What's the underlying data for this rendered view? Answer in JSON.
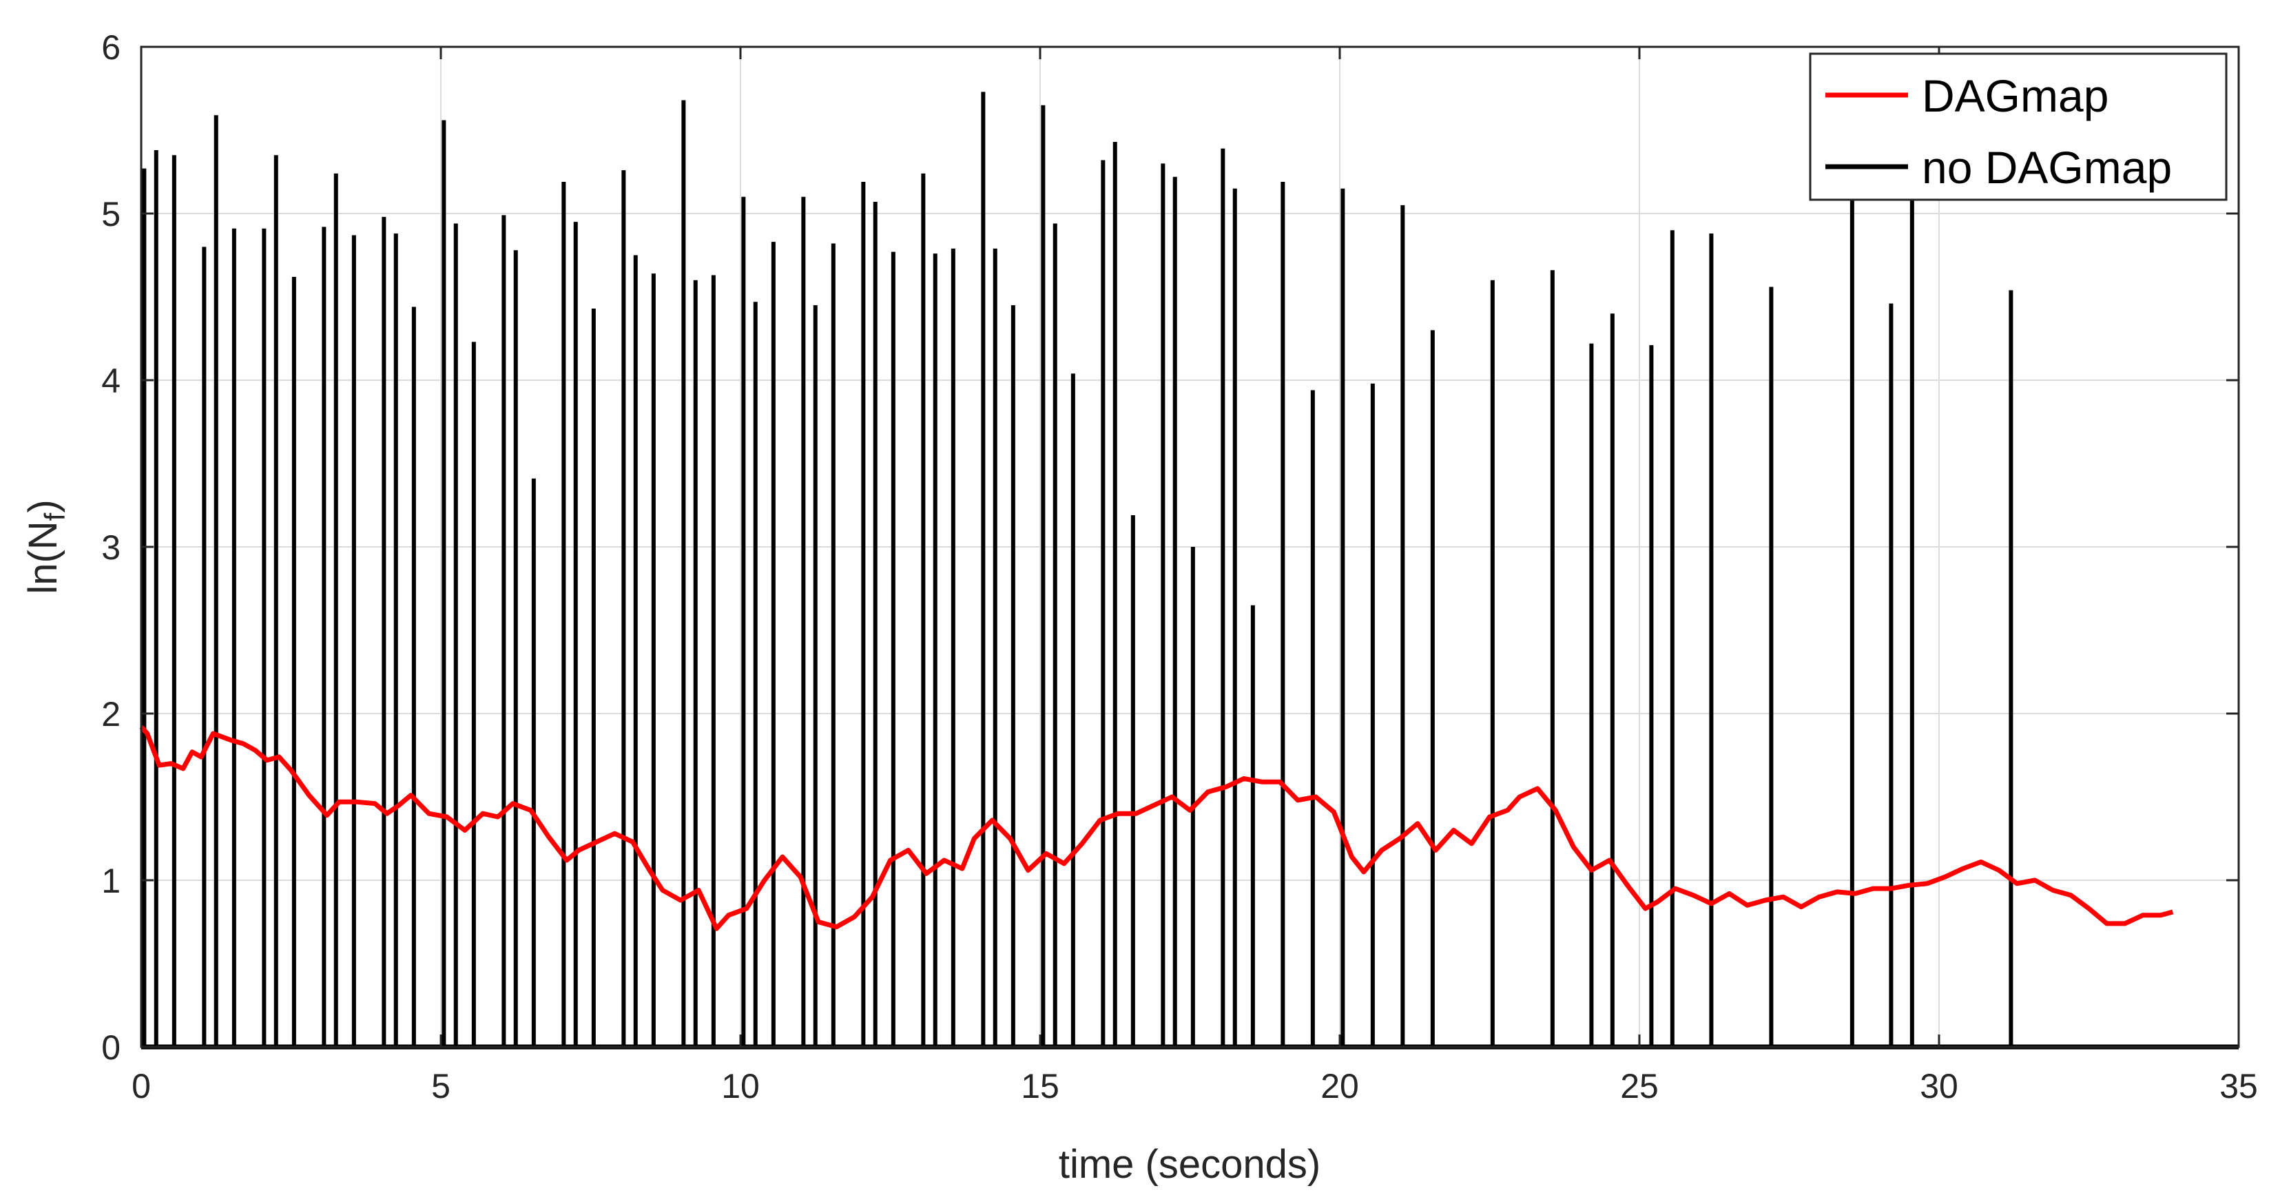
{
  "chart_data": {
    "type": "line",
    "xlabel": "time (seconds)",
    "ylabel": {
      "main": "ln(N",
      "sub": "f",
      "close": ")"
    },
    "xlim": [
      0,
      35
    ],
    "ylim": [
      0,
      6
    ],
    "xticks": [
      "0",
      "5",
      "10",
      "15",
      "20",
      "25",
      "30",
      "35"
    ],
    "yticks": [
      "0",
      "1",
      "2",
      "3",
      "4",
      "5",
      "6"
    ],
    "grid": true,
    "legend_position": "top-right",
    "series": [
      {
        "name": "DAGmap",
        "color": "#ff0000",
        "x": [
          0.0,
          0.1,
          0.3,
          0.5,
          0.7,
          0.85,
          1.0,
          1.2,
          1.5,
          1.7,
          1.9,
          2.1,
          2.3,
          2.5,
          2.8,
          3.1,
          3.3,
          3.6,
          3.9,
          4.1,
          4.3,
          4.5,
          4.8,
          5.1,
          5.4,
          5.7,
          5.95,
          6.2,
          6.5,
          6.8,
          7.1,
          7.3,
          7.6,
          7.9,
          8.2,
          8.5,
          8.7,
          9.0,
          9.3,
          9.6,
          9.8,
          10.1,
          10.4,
          10.7,
          11.0,
          11.3,
          11.6,
          11.9,
          12.2,
          12.5,
          12.8,
          13.1,
          13.4,
          13.7,
          13.9,
          14.2,
          14.5,
          14.8,
          15.1,
          15.4,
          15.7,
          16.0,
          16.3,
          16.6,
          16.9,
          17.2,
          17.5,
          17.8,
          18.1,
          18.4,
          18.7,
          19.0,
          19.3,
          19.6,
          19.9,
          20.2,
          20.4,
          20.7,
          21.0,
          21.3,
          21.6,
          21.9,
          22.2,
          22.5,
          22.8,
          23.0,
          23.3,
          23.6,
          23.9,
          24.2,
          24.5,
          24.8,
          25.1,
          25.3,
          25.6,
          25.9,
          26.2,
          26.5,
          26.8,
          27.1,
          27.4,
          27.7,
          28.0,
          28.3,
          28.6,
          28.9,
          29.2,
          29.5,
          29.8,
          30.1,
          30.4,
          30.7,
          31.0,
          31.3,
          31.6,
          31.9,
          32.2,
          32.5,
          32.8,
          33.1,
          33.4,
          33.7,
          33.9
        ],
        "y": [
          1.92,
          1.88,
          1.69,
          1.7,
          1.67,
          1.77,
          1.74,
          1.88,
          1.84,
          1.82,
          1.78,
          1.72,
          1.74,
          1.66,
          1.51,
          1.39,
          1.47,
          1.47,
          1.46,
          1.4,
          1.45,
          1.51,
          1.4,
          1.38,
          1.3,
          1.4,
          1.38,
          1.46,
          1.42,
          1.26,
          1.12,
          1.18,
          1.23,
          1.28,
          1.23,
          1.05,
          0.94,
          0.88,
          0.94,
          0.71,
          0.79,
          0.83,
          1.0,
          1.14,
          1.02,
          0.75,
          0.72,
          0.78,
          0.9,
          1.12,
          1.18,
          1.04,
          1.12,
          1.07,
          1.25,
          1.36,
          1.25,
          1.06,
          1.16,
          1.1,
          1.22,
          1.36,
          1.4,
          1.4,
          1.45,
          1.5,
          1.42,
          1.53,
          1.56,
          1.61,
          1.59,
          1.59,
          1.48,
          1.5,
          1.41,
          1.14,
          1.05,
          1.18,
          1.25,
          1.34,
          1.18,
          1.3,
          1.22,
          1.38,
          1.42,
          1.5,
          1.55,
          1.42,
          1.2,
          1.06,
          1.12,
          0.97,
          0.83,
          0.87,
          0.95,
          0.91,
          0.86,
          0.92,
          0.85,
          0.88,
          0.9,
          0.84,
          0.9,
          0.93,
          0.92,
          0.95,
          0.95,
          0.97,
          0.98,
          1.02,
          1.07,
          1.11,
          1.06,
          0.98,
          1.0,
          0.94,
          0.91,
          0.83,
          0.74,
          0.74,
          0.79,
          0.79,
          0.81
        ]
      },
      {
        "name": "no DAGmap",
        "color": "#000000",
        "spikes_x": [
          0.05,
          0.25,
          0.55,
          1.05,
          1.25,
          1.55,
          2.05,
          2.25,
          2.55,
          3.05,
          3.25,
          3.55,
          4.05,
          4.25,
          4.55,
          5.05,
          5.25,
          5.55,
          6.05,
          6.25,
          6.55,
          7.05,
          7.25,
          7.55,
          8.05,
          8.25,
          8.55,
          9.05,
          9.25,
          9.55,
          10.05,
          10.25,
          10.55,
          11.05,
          11.25,
          11.55,
          12.05,
          12.25,
          12.55,
          13.05,
          13.25,
          13.55,
          14.05,
          14.25,
          14.55,
          15.05,
          15.25,
          15.55,
          16.05,
          16.25,
          16.55,
          17.05,
          17.25,
          17.55,
          18.05,
          18.25,
          18.55,
          19.05,
          19.55,
          20.05,
          20.55,
          21.05,
          21.55,
          22.55,
          23.55,
          24.2,
          24.55,
          25.2,
          25.55,
          26.2,
          27.2,
          28.55,
          29.2,
          29.55,
          31.2
        ],
        "spikes_y": [
          5.27,
          5.38,
          5.35,
          4.8,
          5.59,
          4.91,
          4.91,
          5.35,
          4.62,
          4.92,
          5.24,
          4.87,
          4.98,
          4.88,
          4.44,
          5.56,
          4.94,
          4.23,
          4.99,
          4.78,
          3.41,
          5.19,
          4.95,
          4.43,
          5.26,
          4.75,
          4.64,
          5.68,
          4.6,
          4.63,
          5.1,
          4.47,
          4.83,
          5.1,
          4.45,
          4.82,
          5.19,
          5.07,
          4.77,
          5.24,
          4.76,
          4.79,
          5.73,
          4.79,
          4.45,
          5.65,
          4.94,
          4.04,
          5.32,
          5.43,
          3.19,
          5.3,
          5.22,
          3.0,
          5.39,
          5.15,
          2.65,
          5.19,
          3.94,
          5.15,
          3.98,
          5.05,
          4.3,
          4.6,
          4.66,
          4.22,
          4.4,
          4.21,
          4.9,
          4.88,
          4.56,
          5.2,
          4.46,
          5.1,
          4.54
        ],
        "baseline": 0
      }
    ]
  }
}
